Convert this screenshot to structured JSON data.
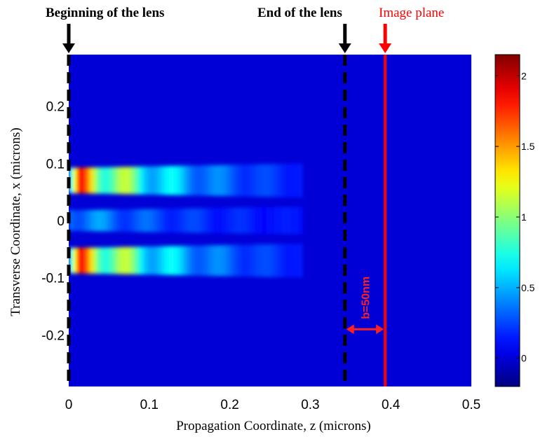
{
  "chart_data": {
    "type": "heatmap",
    "title": "",
    "xlabel": "Propagation  Coordinate, z (microns)",
    "ylabel": "Transverse Coordinate, x (microns)",
    "xlim": [
      0,
      0.5
    ],
    "ylim": [
      -0.29,
      0.29
    ],
    "x_ticks": [
      {
        "v": 0,
        "label": "0"
      },
      {
        "v": 0.1,
        "label": "0.1"
      },
      {
        "v": 0.2,
        "label": "0.2"
      },
      {
        "v": 0.3,
        "label": "0.3"
      },
      {
        "v": 0.4,
        "label": "0.4"
      },
      {
        "v": 0.5,
        "label": "0.5"
      }
    ],
    "y_ticks": [
      {
        "v": 0.2,
        "label": "0.2"
      },
      {
        "v": 0.1,
        "label": "0.1"
      },
      {
        "v": 0,
        "label": "0"
      },
      {
        "v": -0.1,
        "label": "-0.1"
      },
      {
        "v": -0.2,
        "label": "-0.2"
      }
    ],
    "colormap": "jet",
    "colorbar": {
      "range": [
        -0.2,
        2.15
      ],
      "ticks": [
        {
          "v": 0,
          "label": "0"
        },
        {
          "v": 0.5,
          "label": "0.5"
        },
        {
          "v": 1,
          "label": "1"
        },
        {
          "v": 1.5,
          "label": "1.5"
        },
        {
          "v": 2,
          "label": "2"
        }
      ]
    },
    "field": {
      "background": 0.0,
      "bands": [
        {
          "x_center": 0.07,
          "peak_value": 2.1,
          "peak_z": 0.015
        },
        {
          "x_center": -0.07,
          "peak_value": 2.1,
          "peak_z": 0.015
        },
        {
          "x_center": 0.0,
          "peak_value": 0.55,
          "peak_z": 0.04
        }
      ],
      "band_end_z": 0.29
    },
    "markers": [
      {
        "label": "Beginning of the lens",
        "z": 0.0,
        "style": "dashed",
        "color": "#000000"
      },
      {
        "label": "End of the lens",
        "z": 0.343,
        "style": "dashed",
        "color": "#000000"
      },
      {
        "label": "Image plane",
        "z": 0.393,
        "style": "solid",
        "color": "#ff0000"
      }
    ],
    "gap_annotation": {
      "label": "b=50nm",
      "from_z": 0.343,
      "to_z": 0.393,
      "x": -0.19,
      "color": "#ff2020"
    }
  }
}
